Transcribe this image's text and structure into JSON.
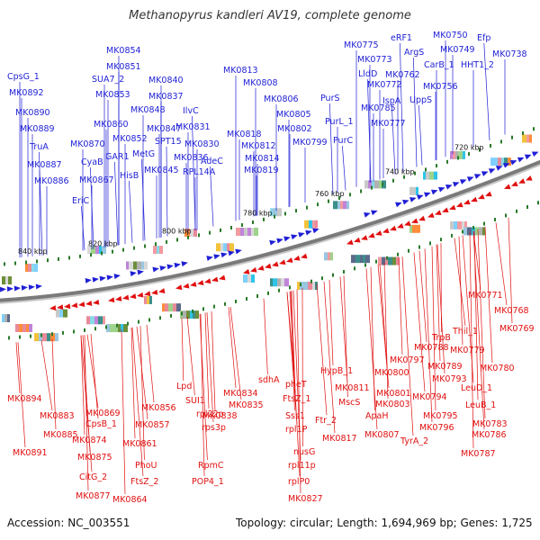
{
  "title": "Methanopyrus kandleri AV19, complete genome",
  "footer": {
    "accession": "Accession: NC_003551",
    "summary": "Topology: circular; Length: 1,694,969 bp; Genes: 1,725"
  },
  "colors": {
    "forward": "#1f1fd6",
    "reverse": "#e01010",
    "backbone": "#7a7a7a",
    "tick": "#2a7a2a"
  },
  "scale_labels": [
    "840 kbp",
    "820 kbp",
    "800 kbp",
    "780 kbp",
    "760 kbp",
    "740 kbp",
    "720 kbp"
  ],
  "forward_genes": [
    "CpsG_1",
    "MK0892",
    "MK0890",
    "MK0889",
    "TruA",
    "MK0887",
    "MK0886",
    "EriC",
    "MK0867",
    "CyaB",
    "MK0870",
    "MK0854",
    "SUA7_2",
    "MK0851",
    "MK0853",
    "MK0860",
    "GAR1",
    "HisB",
    "MK0852",
    "MK0848",
    "MetG",
    "MK0847",
    "MK0845",
    "SPT15",
    "MK0840",
    "MK0837",
    "MK0836",
    "MK0831",
    "MK0830",
    "IlvC",
    "AdeC",
    "RPL14A",
    "MK0813",
    "MK0808",
    "MK0806",
    "MK0805",
    "MK0802",
    "MK0799",
    "MK0818",
    "MK0812",
    "MK0814",
    "MK0819",
    "PurS",
    "PurL_1",
    "PurC",
    "MK0785",
    "MK0775",
    "MK0773",
    "LldD",
    "MK0772",
    "eRF1",
    "ArgS",
    "MK0762",
    "IspA",
    "MK0777",
    "MK0750",
    "MK0749",
    "CarB_1",
    "HHT1_2",
    "MK0756",
    "UppS",
    "Efp",
    "MK0738"
  ],
  "reverse_genes": [
    "MK0894",
    "MK0891",
    "MK0883",
    "MK0885",
    "CpsB_1",
    "MK0869",
    "MK0874",
    "MK0875",
    "CitG_2",
    "MK0877",
    "MK0856",
    "MK0857",
    "MK0861",
    "PhoU",
    "FtsZ_2",
    "MK0864",
    "Lpd",
    "SUI1",
    "rpl22p",
    "rps3p",
    "RpmC",
    "POP4_1",
    "MK0834",
    "MK0835",
    "MK0838",
    "sdhA",
    "pheT",
    "FtsZ_1",
    "Sss1",
    "rpl1P",
    "nusG",
    "rpl11p",
    "rplP0",
    "MK0827",
    "MK0811",
    "MK0817",
    "HypB_1",
    "MscS",
    "Ftr_2",
    "MK0797",
    "MK0800",
    "MK0801",
    "MK0803",
    "ApaH",
    "MK0807",
    "MK0789",
    "MK0793",
    "MK0794",
    "MK0795",
    "MK0796",
    "TyrA_2",
    "TrpB",
    "MK0788",
    "Thil_1",
    "MK0779",
    "MK0780",
    "LeuD_1",
    "LeuB_1",
    "MK0783",
    "MK0786",
    "MK0787",
    "MK0771",
    "MK0768",
    "MK0769"
  ]
}
